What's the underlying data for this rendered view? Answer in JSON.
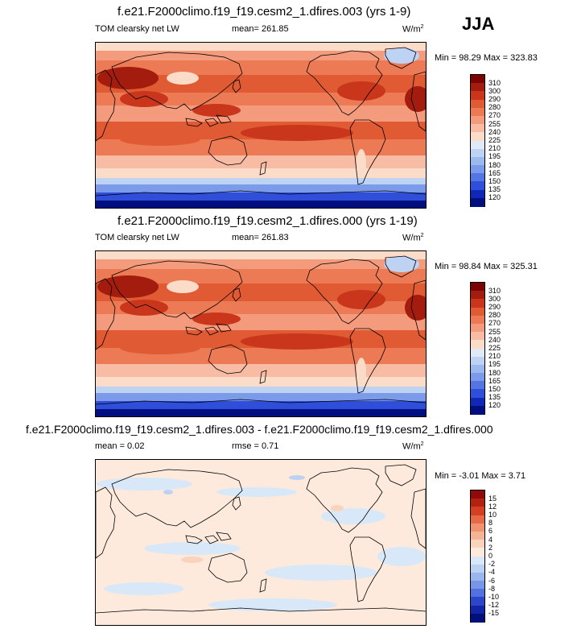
{
  "season": "JJA",
  "panels": [
    {
      "title": "f.e21.F2000climo.f19_f19.cesm2_1.dfires.003 (yrs 1-9)",
      "left_label": "TOM clearsky net LW",
      "mean_label": "mean= 261.85",
      "units_label": "W/m",
      "units_sup": "2",
      "minmax_label": "Min =  98.29 Max = 323.83",
      "ticks": [
        "310",
        "300",
        "290",
        "280",
        "270",
        "255",
        "240",
        "225",
        "210",
        "195",
        "180",
        "165",
        "150",
        "135",
        "120"
      ]
    },
    {
      "title": "f.e21.F2000climo.f19_f19.cesm2_1.dfires.000 (yrs 1-19)",
      "left_label": "TOM clearsky net LW",
      "mean_label": "mean= 261.83",
      "units_label": "W/m",
      "units_sup": "2",
      "minmax_label": "Min =  98.84 Max = 325.31",
      "ticks": [
        "310",
        "300",
        "290",
        "280",
        "270",
        "255",
        "240",
        "225",
        "210",
        "195",
        "180",
        "165",
        "150",
        "135",
        "120"
      ]
    },
    {
      "title": "f.e21.F2000climo.f19_f19.cesm2_1.dfires.003 - f.e21.F2000climo.f19_f19.cesm2_1.dfires.000",
      "left_label": "mean =   0.02",
      "mean_label": "rmse =   0.71",
      "units_label": "W/m",
      "units_sup": "2",
      "minmax_label": "Min = -3.01 Max =  3.71",
      "ticks": [
        "15",
        "12",
        "10",
        "8",
        "6",
        "4",
        "2",
        "0",
        "-2",
        "-4",
        "-6",
        "-8",
        "-10",
        "-12",
        "-15"
      ]
    }
  ],
  "colors": {
    "abs_scale": [
      "#7a0403",
      "#a41c0e",
      "#c9361c",
      "#e05a34",
      "#ec7a55",
      "#f39b7c",
      "#f8bca5",
      "#fbdcc9",
      "#dfe9f7",
      "#bed3f3",
      "#9cb9ef",
      "#7b9aea",
      "#5476e3",
      "#2f4ed9",
      "#1027b8",
      "#000f80"
    ],
    "diff_scale": [
      "#8f0a0a",
      "#b3210f",
      "#d33f21",
      "#e66a45",
      "#f0916f",
      "#f6b497",
      "#fad3bd",
      "#fdeadc",
      "#d9e8f8",
      "#bcd2f3",
      "#9ab6ee",
      "#7896e8",
      "#5270df",
      "#2c46c9",
      "#1325a6",
      "#00107a"
    ]
  }
}
